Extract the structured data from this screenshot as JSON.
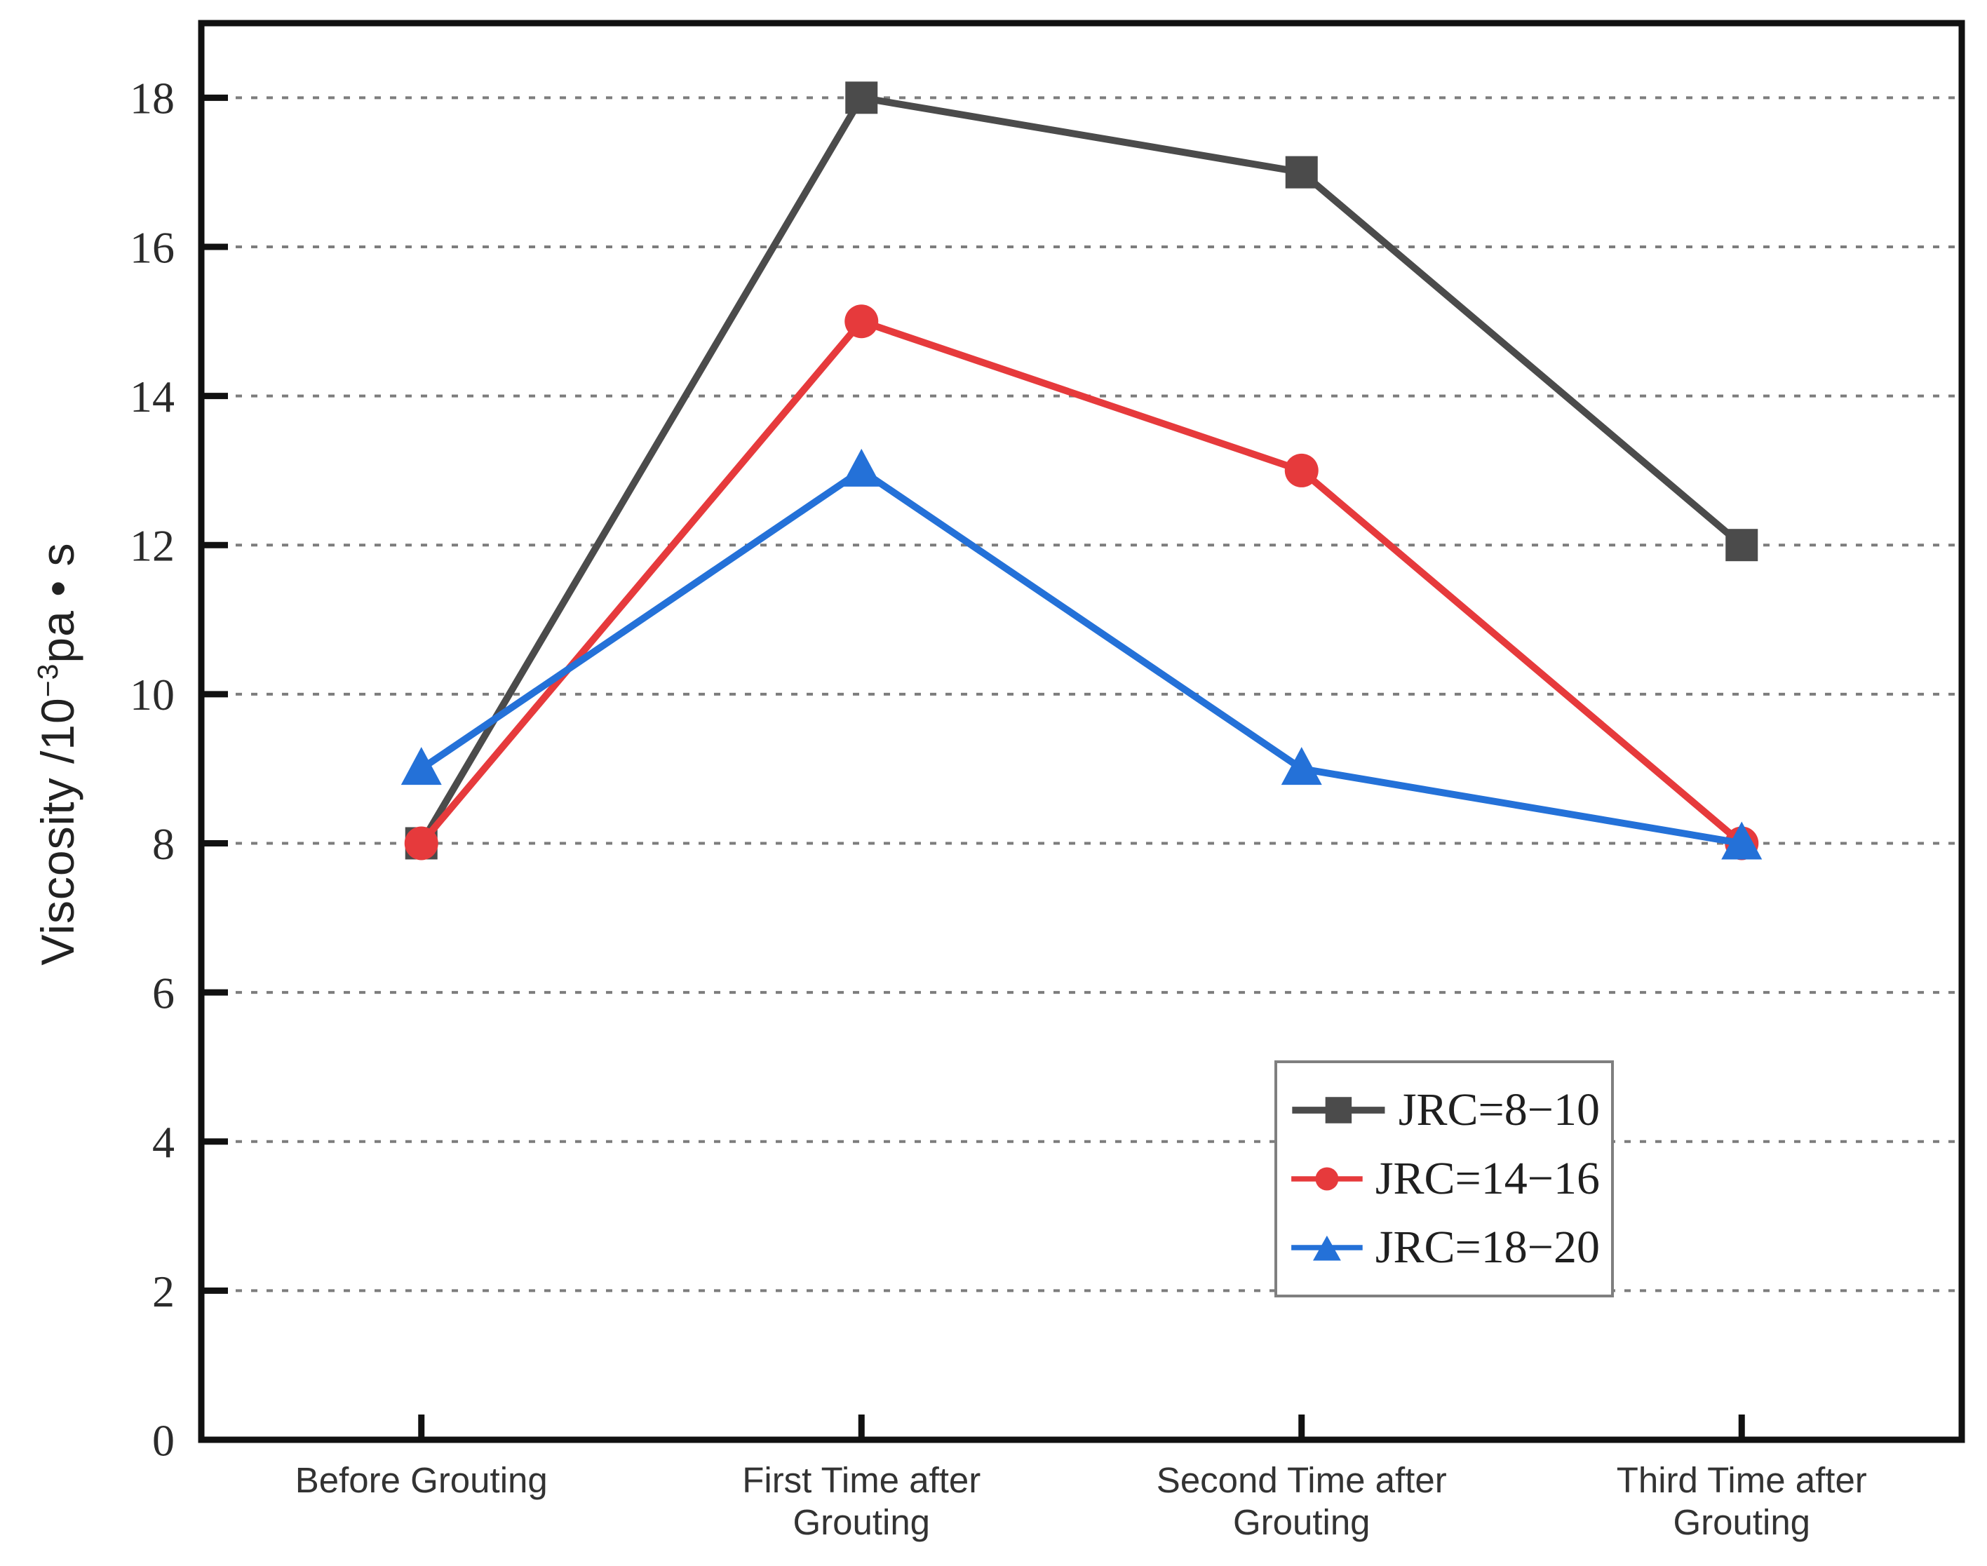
{
  "chart_data": {
    "type": "line",
    "categories": [
      [
        "Before Grouting"
      ],
      [
        "First Time after",
        "Grouting"
      ],
      [
        "Second Time after",
        "Grouting"
      ],
      [
        "Third Time after",
        "Grouting"
      ]
    ],
    "series": [
      {
        "name": "JRC=8−10",
        "marker": "square",
        "color": "#4b4b4b",
        "values": [
          8,
          18,
          17,
          12
        ]
      },
      {
        "name": "JRC=14−16",
        "marker": "circle",
        "color": "#e63a3c",
        "values": [
          8,
          15,
          13,
          8
        ]
      },
      {
        "name": "JRC=18−20",
        "marker": "triangle",
        "color": "#2471d8",
        "values": [
          9,
          13,
          9,
          8
        ]
      }
    ],
    "ylabel_parts": {
      "prefix": "Viscosity /10",
      "sup": "−3",
      "suffix": "pa • s"
    },
    "xlabel": "",
    "yticks": [
      0,
      2,
      4,
      6,
      8,
      10,
      12,
      14,
      16,
      18
    ],
    "grid_values": [
      2,
      4,
      6,
      8,
      10,
      12,
      14,
      16,
      18
    ],
    "ylim": [
      0,
      19
    ],
    "grid": "horizontal-dashed",
    "legend_position": "inside-bottom-right",
    "axis_color": "#111111",
    "grid_color": "#7d7d7d",
    "tick_label_color": "#2b2b2b",
    "category_label_color": "#333333",
    "legend_border_color": "#7f7f7f"
  }
}
